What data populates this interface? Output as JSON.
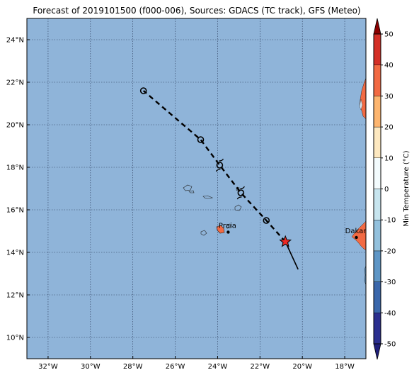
{
  "title": "Forecast of 2019101500 (f000-006), Sources: GDACS (TC track), GFS (Meteo)",
  "map": {
    "lon_range": [
      -33,
      -17
    ],
    "lat_range": [
      9,
      25
    ],
    "lon_ticks": [
      {
        "value": -32,
        "label": "32°W"
      },
      {
        "value": -30,
        "label": "30°W"
      },
      {
        "value": -28,
        "label": "28°W"
      },
      {
        "value": -26,
        "label": "26°W"
      },
      {
        "value": -24,
        "label": "24°W"
      },
      {
        "value": -22,
        "label": "22°W"
      },
      {
        "value": -20,
        "label": "20°W"
      },
      {
        "value": -18,
        "label": "18°W"
      }
    ],
    "lat_ticks": [
      {
        "value": 10,
        "label": "10°N"
      },
      {
        "value": 12,
        "label": "12°N"
      },
      {
        "value": 14,
        "label": "14°N"
      },
      {
        "value": 16,
        "label": "16°N"
      },
      {
        "value": 18,
        "label": "18°N"
      },
      {
        "value": 20,
        "label": "20°N"
      },
      {
        "value": 22,
        "label": "22°N"
      },
      {
        "value": 24,
        "label": "24°N"
      }
    ],
    "grid": true,
    "ocean_color": "#8fb4d9"
  },
  "cities": [
    {
      "name": "Praia",
      "lon": -23.5,
      "lat": 14.95
    },
    {
      "name": "Dakar",
      "lon": -17.45,
      "lat": 14.7
    }
  ],
  "track": {
    "current": {
      "lon": -20.8,
      "lat": 14.5
    },
    "past_end": {
      "lon": -20.2,
      "lat": 13.2
    },
    "forecast_points": [
      {
        "lon": -21.7,
        "lat": 15.5
      },
      {
        "lon": -22.9,
        "lat": 16.8
      },
      {
        "lon": -23.9,
        "lat": 18.1
      },
      {
        "lon": -24.8,
        "lat": 19.3
      },
      {
        "lon": -27.5,
        "lat": 21.6
      }
    ],
    "star_color": "#ee2a24"
  },
  "colorbar": {
    "label": "Min Temperature (°C)",
    "ticks": [
      "-50",
      "-40",
      "-30",
      "-20",
      "-10",
      "0",
      "10",
      "20",
      "30",
      "40",
      "50"
    ],
    "colors": [
      "#2b2f8f",
      "#3a67ab",
      "#5e96c6",
      "#93c1dd",
      "#c7e5ef",
      "#f3fbfd",
      "#fde8c0",
      "#fdb56f",
      "#f26a43",
      "#d42f27",
      "#a50026"
    ],
    "under_color": "#1f1f7a",
    "over_color": "#8b0000"
  }
}
